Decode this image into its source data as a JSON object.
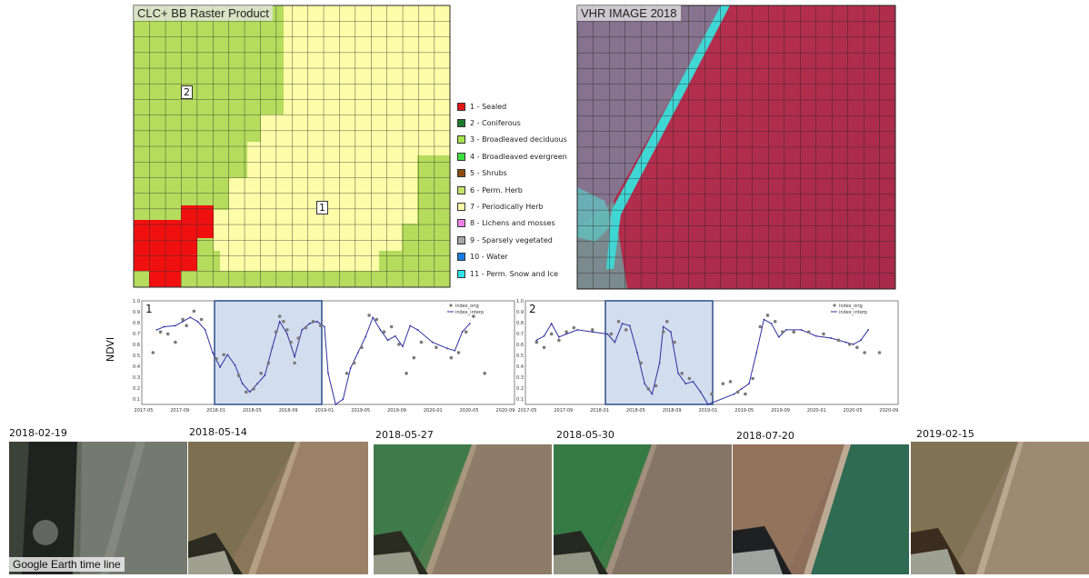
{
  "raster_panel": {
    "title": "CLC+ BB Raster Product",
    "markers": [
      "2",
      "1"
    ]
  },
  "legend": [
    {
      "label": "1 - Sealed",
      "color": "#e8151b"
    },
    {
      "label": "2 - Coniferous",
      "color": "#217a2c"
    },
    {
      "label": "3 - Broadleaved deciduous",
      "color": "#a6e34e"
    },
    {
      "label": "4 - Broadleaved evergreen",
      "color": "#3ee03e"
    },
    {
      "label": "5 - Shrubs",
      "color": "#8a4b12"
    },
    {
      "label": "6 - Perm. Herb",
      "color": "#c4e06a"
    },
    {
      "label": "7 - Periodically Herb",
      "color": "#fdfca8"
    },
    {
      "label": "8 - Lichens and mosses",
      "color": "#ee82e6"
    },
    {
      "label": "9 - Sparsely vegetated",
      "color": "#a8a8a8"
    },
    {
      "label": "10 - Water",
      "color": "#1a7fe0"
    },
    {
      "label": "11 - Perm. Snow and Ice",
      "color": "#2ee4e4"
    }
  ],
  "vhr_panel": {
    "title": "VHR IMAGE 2018"
  },
  "charts": {
    "ylabel": "NDVI",
    "legend_orig": "index_orig",
    "legend_interp": "index_interp",
    "left": {
      "marker": "1",
      "yticks": [
        "1.0",
        "0.9",
        "0.8",
        "0.7",
        "0.6",
        "0.5",
        "0.4",
        "0.3",
        "0.2",
        "0.1"
      ],
      "xticks": [
        "2017-05",
        "2017-09",
        "2018-01",
        "2018-05",
        "2018-09",
        "2019-01",
        "2019-05",
        "2019-09",
        "2020-01",
        "2020-05",
        "2020-09"
      ]
    },
    "right": {
      "marker": "2",
      "yticks": [
        "1.0",
        "0.9",
        "0.8",
        "0.7",
        "0.6",
        "0.5",
        "0.4",
        "0.3",
        "0.2",
        "0.1"
      ],
      "xticks": [
        "2017-05",
        "2017-09",
        "2018-01",
        "2018-05",
        "2018-09",
        "2019-01",
        "2019-05",
        "2019-09",
        "2020-01",
        "2020-05",
        "2020-09"
      ]
    }
  },
  "timeline": {
    "caption": "Google Earth time line",
    "dates": [
      "2018-02-19",
      "2018-05-14",
      "2018-05-27",
      "2018-05-30",
      "2018-07-20",
      "2019-02-15"
    ]
  }
}
